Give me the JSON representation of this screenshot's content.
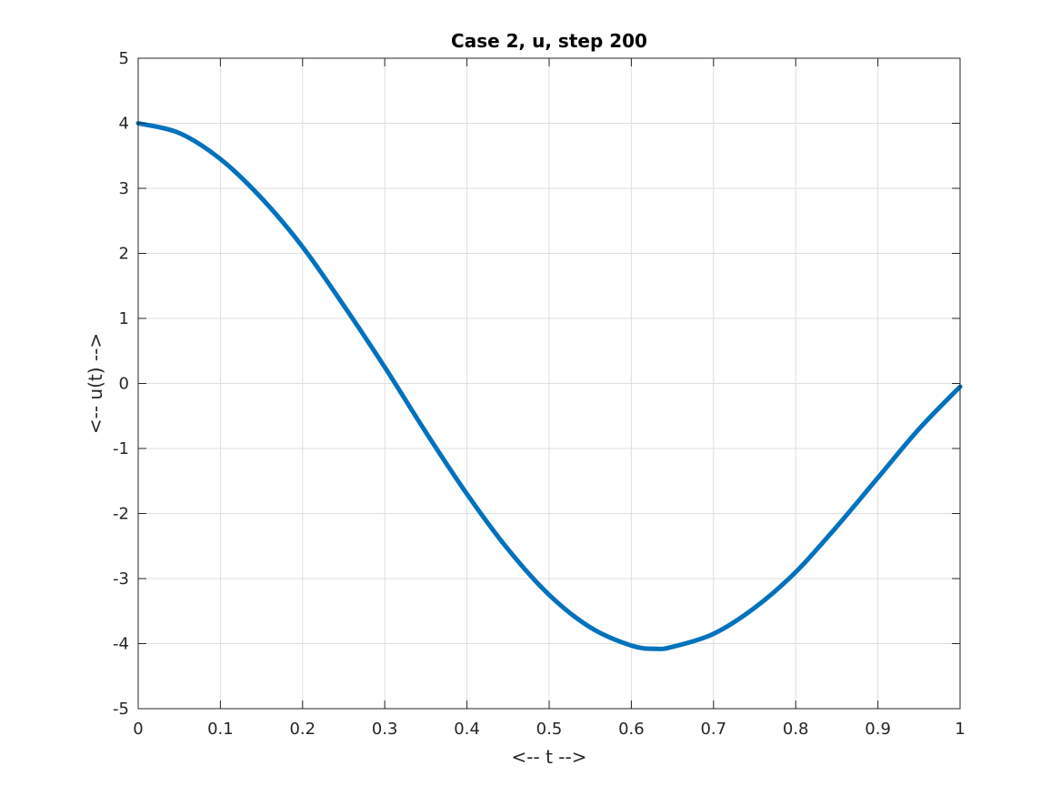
{
  "chart_data": {
    "type": "line",
    "title": "Case 2, u, step 200",
    "xlabel": "<-- t -->",
    "ylabel": "<-- u(t) -->",
    "xlim": [
      0,
      1
    ],
    "ylim": [
      -5,
      5
    ],
    "xticks": [
      "0",
      "0.1",
      "0.2",
      "0.3",
      "0.4",
      "0.5",
      "0.6",
      "0.7",
      "0.8",
      "0.9",
      "1"
    ],
    "yticks": [
      "-5",
      "-4",
      "-3",
      "-2",
      "-1",
      "0",
      "1",
      "2",
      "3",
      "4",
      "5"
    ],
    "grid": true,
    "series": [
      {
        "color": "#0072BD",
        "x": [
          0,
          0.05,
          0.1,
          0.15,
          0.2,
          0.25,
          0.3,
          0.35,
          0.4,
          0.45,
          0.5,
          0.55,
          0.6,
          0.63,
          0.65,
          0.7,
          0.75,
          0.8,
          0.85,
          0.9,
          0.95,
          1.0
        ],
        "y": [
          4.0,
          3.85,
          3.45,
          2.85,
          2.1,
          1.2,
          0.25,
          -0.75,
          -1.7,
          -2.55,
          -3.25,
          -3.75,
          -4.03,
          -4.08,
          -4.05,
          -3.85,
          -3.45,
          -2.9,
          -2.2,
          -1.45,
          -0.7,
          -0.05
        ]
      }
    ]
  }
}
